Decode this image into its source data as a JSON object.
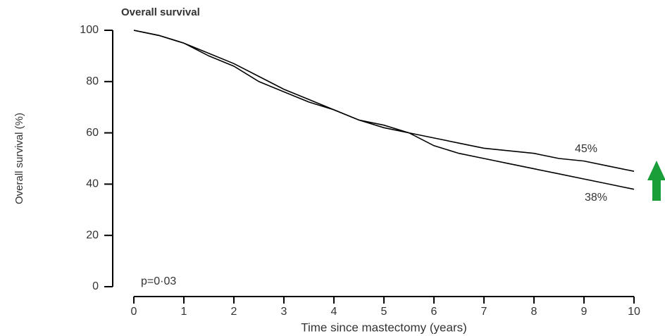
{
  "chart_data": {
    "type": "line",
    "title": "Overall survival",
    "x_label": "Time since mastectomy (years)",
    "y_label": "Overall survival (%)",
    "x": [
      0,
      0.5,
      1,
      1.5,
      2,
      2.5,
      3,
      3.5,
      4,
      4.5,
      5,
      5.5,
      6,
      6.5,
      7,
      7.5,
      8,
      8.5,
      9,
      9.5,
      10
    ],
    "series": [
      {
        "color": "#000000",
        "values": [
          100,
          98,
          95,
          91,
          87,
          82,
          77,
          73,
          69,
          65,
          62,
          60,
          58,
          56,
          54,
          53,
          52,
          50,
          49,
          47,
          45
        ]
      },
      {
        "color": "#000000",
        "values": [
          100,
          98,
          95,
          90,
          86,
          80,
          76,
          72,
          69,
          65,
          63,
          60,
          55,
          52,
          50,
          48,
          46,
          44,
          42,
          40,
          38
        ]
      }
    ],
    "annotations": [
      "45%",
      "38%",
      "p=0·03"
    ],
    "xlim": [
      0,
      10
    ],
    "xticks": [
      0,
      1,
      2,
      3,
      4,
      5,
      6,
      7,
      8,
      9,
      10
    ],
    "ylim": [
      0,
      100
    ],
    "yticks": [
      0,
      20,
      40,
      60,
      80,
      100
    ]
  }
}
